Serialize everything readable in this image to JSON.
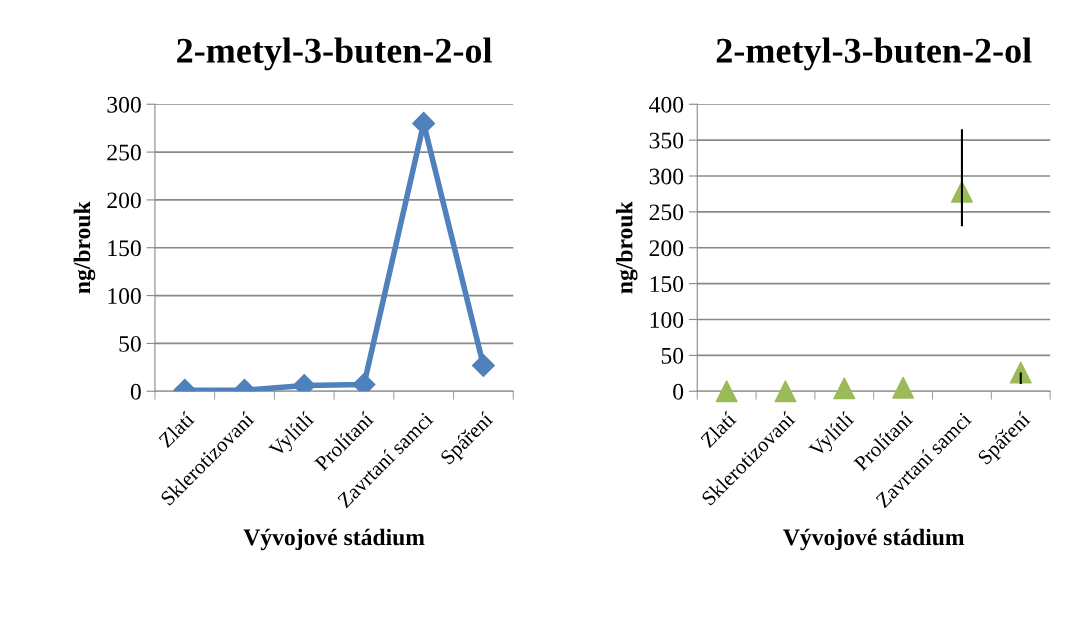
{
  "chart_data": [
    {
      "type": "line",
      "title": "2-metyl-3-buten-2-ol",
      "xlabel": "Vývojové stádium",
      "ylabel": "ng/brouk",
      "categories": [
        "Zlatí",
        "Sklerotizovaní",
        "Vylítlí",
        "Prolítaní",
        "Zavrtaní samci",
        "Spáření"
      ],
      "series": [
        {
          "color": "#4f81bd",
          "values": [
            1,
            1,
            6,
            7,
            280,
            27
          ]
        }
      ],
      "marker": "diamond",
      "line_style": "solid",
      "ylim": [
        0,
        300
      ],
      "yticks": [
        0,
        50,
        100,
        150,
        200,
        250,
        300
      ],
      "grid": "y",
      "legend": false
    },
    {
      "type": "scatter",
      "title": "2-metyl-3-buten-2-ol",
      "xlabel": "Vývojové stádium",
      "ylabel": "ng/brouk",
      "categories": [
        "Zlatí",
        "Sklerotizovaní",
        "Vylítlí",
        "Prolítaní",
        "Zavrtaní samci",
        "Spáření"
      ],
      "series": [
        {
          "color": "#9bbb59",
          "values": [
            0,
            0,
            4,
            5,
            278,
            26
          ],
          "errors": [
            null,
            null,
            null,
            null,
            [
              230,
              365
            ],
            [
              10,
              26
            ]
          ]
        }
      ],
      "marker": "triangle",
      "ylim": [
        0,
        400
      ],
      "yticks": [
        0,
        50,
        100,
        150,
        200,
        250,
        300,
        350,
        400
      ],
      "grid": "y",
      "legend": false
    }
  ]
}
